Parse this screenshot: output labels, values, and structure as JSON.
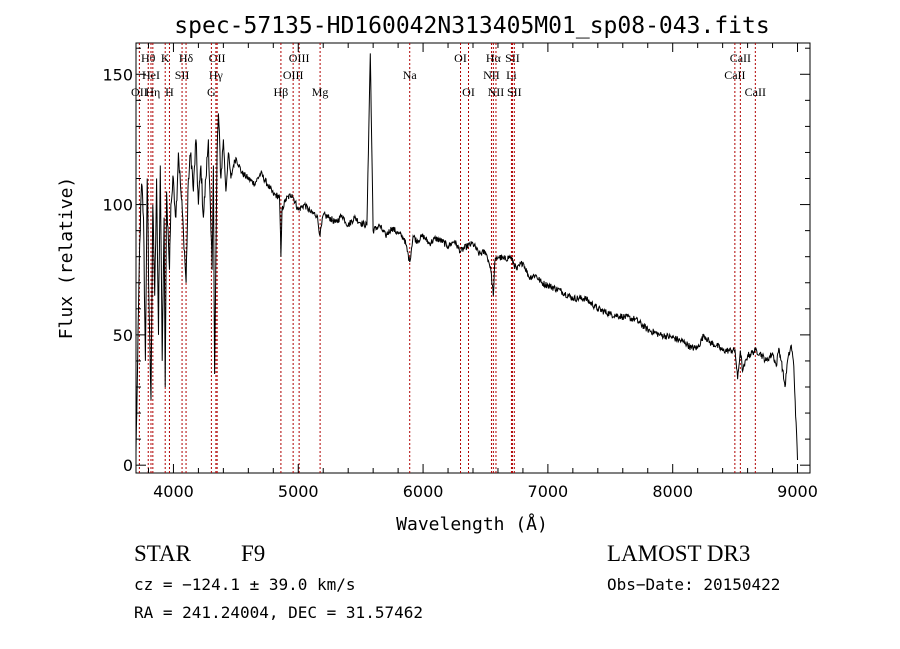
{
  "chart_data": {
    "type": "line",
    "title": "spec-57135-HD160042N313405M01_sp08-043.fits",
    "xlabel": "Wavelength (Å)",
    "ylabel": "Flux (relative)",
    "xlim": [
      3700,
      9100
    ],
    "ylim": [
      -3,
      162
    ],
    "xticks": [
      4000,
      5000,
      6000,
      7000,
      8000,
      9000
    ],
    "yticks": [
      0,
      50,
      100,
      150
    ],
    "line_color": "#000000",
    "marker_color": "#b00000",
    "series": [
      {
        "name": "flux",
        "x": [
          3700,
          3710,
          3720,
          3730,
          3745,
          3760,
          3775,
          3790,
          3805,
          3820,
          3835,
          3850,
          3865,
          3880,
          3895,
          3910,
          3925,
          3934,
          3945,
          3960,
          3968,
          3980,
          4000,
          4020,
          4040,
          4060,
          4080,
          4101,
          4120,
          4140,
          4160,
          4180,
          4200,
          4220,
          4240,
          4260,
          4280,
          4300,
          4310,
          4320,
          4330,
          4340,
          4350,
          4360,
          4380,
          4400,
          4420,
          4440,
          4460,
          4480,
          4500,
          4550,
          4600,
          4650,
          4700,
          4750,
          4800,
          4850,
          4861,
          4870,
          4900,
          4950,
          5000,
          5050,
          5100,
          5150,
          5175,
          5200,
          5250,
          5300,
          5350,
          5400,
          5450,
          5500,
          5550,
          5577,
          5600,
          5650,
          5700,
          5750,
          5800,
          5850,
          5893,
          5920,
          5950,
          6000,
          6050,
          6100,
          6150,
          6200,
          6250,
          6300,
          6350,
          6400,
          6450,
          6500,
          6540,
          6563,
          6575,
          6600,
          6650,
          6700,
          6750,
          6800,
          6850,
          6900,
          6950,
          7000,
          7100,
          7200,
          7300,
          7400,
          7500,
          7600,
          7700,
          7800,
          7900,
          8000,
          8100,
          8150,
          8200,
          8250,
          8300,
          8350,
          8400,
          8450,
          8500,
          8520,
          8542,
          8560,
          8600,
          8662,
          8700,
          8750,
          8800,
          8830,
          8850,
          8870,
          8900,
          8920,
          8950,
          8970,
          9000
        ],
        "y": [
          5,
          30,
          60,
          85,
          108,
          95,
          40,
          110,
          60,
          25,
          100,
          65,
          110,
          50,
          115,
          40,
          95,
          30,
          105,
          85,
          75,
          100,
          110,
          95,
          120,
          105,
          90,
          70,
          110,
          120,
          105,
          125,
          100,
          115,
          95,
          110,
          125,
          90,
          75,
          115,
          35,
          80,
          120,
          135,
          110,
          125,
          105,
          120,
          110,
          115,
          118,
          112,
          110,
          108,
          112,
          108,
          104,
          103,
          80,
          98,
          102,
          104,
          98,
          100,
          97,
          96,
          88,
          96,
          95,
          93,
          96,
          92,
          95,
          93,
          92,
          158,
          90,
          92,
          88,
          91,
          89,
          87,
          78,
          88,
          86,
          88,
          85,
          87,
          86,
          84,
          86,
          82,
          84,
          85,
          81,
          82,
          76,
          65,
          78,
          80,
          79,
          80,
          75,
          78,
          72,
          73,
          70,
          69,
          67,
          64,
          64,
          60,
          58,
          57,
          56,
          52,
          50,
          49,
          47,
          45,
          45,
          50,
          47,
          46,
          44,
          44,
          44,
          33,
          44,
          36,
          42,
          44,
          43,
          40,
          43,
          38,
          45,
          40,
          30,
          40,
          46,
          38,
          2
        ]
      }
    ],
    "markers": [
      {
        "label": "Hθ",
        "x": 3798,
        "row": 1
      },
      {
        "label": "OII",
        "x": 3727,
        "row": 3
      },
      {
        "label": "HeI",
        "x": 3820,
        "row": 2
      },
      {
        "label": "Hη",
        "x": 3835,
        "row": 3
      },
      {
        "label": "K",
        "x": 3934,
        "row": 1
      },
      {
        "label": "H",
        "x": 3968,
        "row": 3
      },
      {
        "label": "SII",
        "x": 4069,
        "row": 2
      },
      {
        "label": "Hδ",
        "x": 4101,
        "row": 1
      },
      {
        "label": "OII",
        "x": 4350,
        "row": 1
      },
      {
        "label": "Hγ",
        "x": 4340,
        "row": 2
      },
      {
        "label": "G",
        "x": 4304,
        "row": 3
      },
      {
        "label": "OIII",
        "x": 5007,
        "row": 1
      },
      {
        "label": "OIII",
        "x": 4959,
        "row": 2
      },
      {
        "label": "Hβ",
        "x": 4861,
        "row": 3
      },
      {
        "label": "Mg",
        "x": 5175,
        "row": 3
      },
      {
        "label": "Na",
        "x": 5893,
        "row": 2
      },
      {
        "label": "OI",
        "x": 6300,
        "row": 1
      },
      {
        "label": "OI",
        "x": 6364,
        "row": 3
      },
      {
        "label": "Hα",
        "x": 6563,
        "row": 1
      },
      {
        "label": "NII",
        "x": 6548,
        "row": 2
      },
      {
        "label": "NII",
        "x": 6584,
        "row": 3
      },
      {
        "label": "SII",
        "x": 6716,
        "row": 1
      },
      {
        "label": "Li",
        "x": 6708,
        "row": 2
      },
      {
        "label": "SII",
        "x": 6731,
        "row": 3
      },
      {
        "label": "CaII",
        "x": 8542,
        "row": 1
      },
      {
        "label": "CaII",
        "x": 8498,
        "row": 2
      },
      {
        "label": "CaII",
        "x": 8662,
        "row": 3
      }
    ]
  },
  "info": {
    "object_class": "STAR",
    "subclass": "F9",
    "survey": "LAMOST DR3",
    "cz": "cz = −124.1 ± 39.0 km/s",
    "obs_date": "Obs−Date: 20150422",
    "coords": "RA = 241.24004, DEC =  31.57462"
  }
}
